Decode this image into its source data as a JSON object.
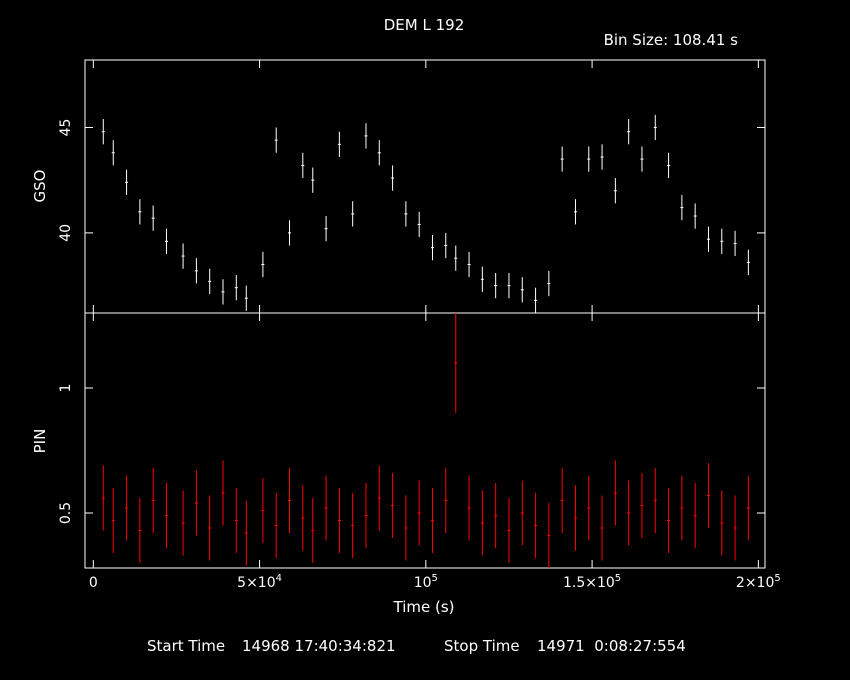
{
  "title": "DEM L 192",
  "bin_size_label": "Bin Size: 108.41 s",
  "footer": {
    "start_label": "Start Time",
    "start_value": "14968 17:40:34:821",
    "stop_label": "Stop Time",
    "stop_value": "14971  0:08:27:554"
  },
  "colors": {
    "background": "#000000",
    "axes": "#ffffff",
    "gso_series": "#ffffff",
    "pin_series": "#ff0000"
  },
  "chart_data": [
    {
      "type": "scatter",
      "panel": "top",
      "ylabel": "GSO",
      "xlim": [
        -2500,
        202000
      ],
      "ylim": [
        36.2,
        48.2
      ],
      "yticks": [
        {
          "value": 40,
          "label": "40"
        },
        {
          "value": 45,
          "label": "45"
        }
      ],
      "error_bars": true,
      "series": [
        {
          "x": [
            3000,
            6000,
            10000,
            14000,
            18000,
            22000,
            27000,
            31000,
            35000,
            39000,
            43000,
            46000,
            51000,
            55000,
            59000,
            63000,
            66000,
            70000,
            74000,
            78000,
            82000,
            86000,
            90000,
            94000,
            98000,
            102000,
            106000,
            109000,
            113000,
            117000,
            121000,
            125000,
            129000,
            133000,
            137000,
            141000,
            145000,
            149000,
            153000,
            157000,
            161000,
            165000,
            169000,
            173000,
            177000,
            181000,
            185000,
            189000,
            193000,
            197000
          ],
          "y": [
            44.8,
            43.8,
            42.4,
            41.0,
            40.7,
            39.6,
            38.9,
            38.2,
            37.7,
            37.2,
            37.4,
            36.9,
            38.5,
            44.4,
            40.0,
            43.2,
            42.5,
            40.2,
            44.2,
            40.9,
            44.6,
            43.8,
            42.6,
            40.9,
            40.4,
            39.3,
            39.4,
            38.8,
            38.5,
            37.8,
            37.5,
            37.5,
            37.3,
            36.8,
            37.6,
            43.5,
            41.0,
            43.5,
            43.6,
            42.0,
            44.8,
            43.5,
            45.0,
            43.2,
            41.2,
            40.8,
            39.7,
            39.6,
            39.5,
            38.6
          ],
          "err": [
            0.6,
            0.6,
            0.6,
            0.6,
            0.6,
            0.6,
            0.6,
            0.6,
            0.6,
            0.6,
            0.6,
            0.6,
            0.6,
            0.6,
            0.6,
            0.6,
            0.6,
            0.6,
            0.6,
            0.6,
            0.6,
            0.6,
            0.6,
            0.6,
            0.6,
            0.6,
            0.6,
            0.6,
            0.6,
            0.6,
            0.6,
            0.6,
            0.6,
            0.6,
            0.6,
            0.6,
            0.6,
            0.6,
            0.6,
            0.6,
            0.6,
            0.6,
            0.6,
            0.6,
            0.6,
            0.6,
            0.6,
            0.6,
            0.6,
            0.6
          ]
        }
      ]
    },
    {
      "type": "scatter",
      "panel": "bottom",
      "ylabel": "PIN",
      "xlabel": "Time (s)",
      "xlim": [
        -2500,
        202000
      ],
      "ylim": [
        0.28,
        1.3
      ],
      "yticks": [
        {
          "value": 0.5,
          "label": "0.5"
        },
        {
          "value": 1,
          "label": "1"
        }
      ],
      "xticks": [
        {
          "value": 0,
          "label": "0"
        },
        {
          "value": 50000,
          "label": "5×10",
          "sup": "4"
        },
        {
          "value": 100000,
          "label": "10",
          "sup": "5"
        },
        {
          "value": 150000,
          "label": "1.5×10",
          "sup": "5"
        },
        {
          "value": 200000,
          "label": "2×10",
          "sup": "5"
        }
      ],
      "error_bars": true,
      "series": [
        {
          "x": [
            3000,
            6000,
            10000,
            14000,
            18000,
            22000,
            27000,
            31000,
            35000,
            39000,
            43000,
            46000,
            51000,
            55000,
            59000,
            63000,
            66000,
            70000,
            74000,
            78000,
            82000,
            86000,
            90000,
            94000,
            98000,
            102000,
            106000,
            109000,
            113000,
            117000,
            121000,
            125000,
            129000,
            133000,
            137000,
            141000,
            145000,
            149000,
            153000,
            157000,
            161000,
            165000,
            169000,
            173000,
            177000,
            181000,
            185000,
            189000,
            193000,
            197000
          ],
          "y": [
            0.56,
            0.47,
            0.52,
            0.43,
            0.55,
            0.49,
            0.46,
            0.54,
            0.44,
            0.58,
            0.47,
            0.42,
            0.51,
            0.45,
            0.55,
            0.48,
            0.43,
            0.52,
            0.47,
            0.45,
            0.49,
            0.56,
            0.53,
            0.44,
            0.5,
            0.47,
            0.55,
            1.1,
            0.52,
            0.46,
            0.49,
            0.43,
            0.5,
            0.45,
            0.41,
            0.55,
            0.48,
            0.52,
            0.44,
            0.58,
            0.5,
            0.53,
            0.55,
            0.47,
            0.52,
            0.49,
            0.57,
            0.46,
            0.44,
            0.52
          ],
          "err": [
            0.13,
            0.13,
            0.13,
            0.13,
            0.13,
            0.13,
            0.13,
            0.13,
            0.13,
            0.13,
            0.13,
            0.13,
            0.13,
            0.13,
            0.13,
            0.13,
            0.13,
            0.13,
            0.13,
            0.13,
            0.13,
            0.13,
            0.13,
            0.13,
            0.13,
            0.13,
            0.13,
            0.2,
            0.13,
            0.13,
            0.13,
            0.13,
            0.13,
            0.13,
            0.13,
            0.13,
            0.13,
            0.13,
            0.13,
            0.13,
            0.13,
            0.13,
            0.13,
            0.13,
            0.13,
            0.13,
            0.13,
            0.13,
            0.13,
            0.13
          ]
        }
      ]
    }
  ]
}
